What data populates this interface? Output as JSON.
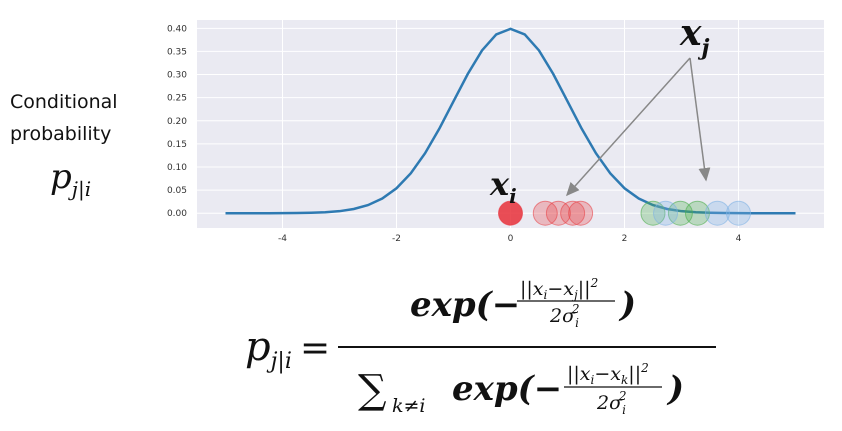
{
  "chart_data": {
    "type": "line",
    "x": [
      -5,
      -4.75,
      -4.5,
      -4.25,
      -4,
      -3.75,
      -3.5,
      -3.25,
      -3,
      -2.75,
      -2.5,
      -2.25,
      -2,
      -1.75,
      -1.5,
      -1.25,
      -1,
      -0.75,
      -0.5,
      -0.25,
      0,
      0.25,
      0.5,
      0.75,
      1,
      1.25,
      1.5,
      1.75,
      2,
      2.25,
      2.5,
      2.75,
      3,
      3.25,
      3.5,
      3.75,
      4,
      4.25,
      4.5,
      4.75,
      5
    ],
    "series": [
      {
        "color": "#2e7ab2",
        "values": [
          0,
          0,
          0,
          0,
          0.0001,
          0.0004,
          0.0009,
          0.002,
          0.0044,
          0.0091,
          0.0175,
          0.0317,
          0.054,
          0.0863,
          0.1295,
          0.1826,
          0.242,
          0.3011,
          0.3521,
          0.3867,
          0.3989,
          0.3867,
          0.3521,
          0.3011,
          0.242,
          0.1826,
          0.1295,
          0.0863,
          0.054,
          0.0317,
          0.0175,
          0.0091,
          0.0044,
          0.002,
          0.0009,
          0.0004,
          0.0001,
          0,
          0,
          0,
          0
        ]
      }
    ],
    "points": [
      {
        "color": "#e8303a",
        "opacity": 0.85,
        "x": [
          0
        ],
        "y": [
          0
        ]
      },
      {
        "color": "#e8454a",
        "opacity": 0.3,
        "x": [
          0.61,
          0.84,
          1.09,
          1.23
        ],
        "y": [
          0,
          0,
          0,
          0
        ]
      },
      {
        "color": "#4cae4c",
        "opacity": 0.3,
        "x": [
          2.5,
          2.98,
          3.28
        ],
        "y": [
          0,
          0,
          0
        ]
      },
      {
        "color": "#7fb2e5",
        "opacity": 0.3,
        "x": [
          2.72,
          3.63,
          4.0
        ],
        "y": [
          0,
          0,
          0
        ]
      }
    ],
    "xlim": [
      -5.5,
      5.5
    ],
    "ylim": [
      -0.032,
      0.418
    ],
    "xticks": [
      -4,
      -2,
      0,
      2,
      4
    ],
    "yticks": [
      {
        "value": 0,
        "label": "0.00"
      },
      {
        "value": 0.05,
        "label": "0.05"
      },
      {
        "value": 0.1,
        "label": "0.10"
      },
      {
        "value": 0.15,
        "label": "0.15"
      },
      {
        "value": 0.2,
        "label": "0.20"
      },
      {
        "value": 0.25,
        "label": "0.25"
      },
      {
        "value": 0.3,
        "label": "0.30"
      },
      {
        "value": 0.35,
        "label": "0.35"
      },
      {
        "value": 0.4,
        "label": "0.40"
      }
    ],
    "grid": true,
    "ylabel": {
      "line1": "Conditional",
      "line2": "probability",
      "sym": "p",
      "sym_sub": "j|i"
    },
    "annotations": {
      "xj": "x",
      "xj_sub": "j",
      "xi": "x",
      "xi_sub": "i"
    }
  },
  "formula": {
    "lhs": "p",
    "lhs_sub": "j|i",
    "equals": "=",
    "num": {
      "open": "exp(−",
      "frac_num": [
        "||x",
        "i",
        "−x",
        "j",
        "||",
        "2"
      ],
      "frac_den": [
        "2σ",
        "i",
        "2"
      ],
      "close": ")"
    },
    "den": {
      "sum": "∑",
      "sum_sub": "k≠i",
      "open": "exp(−",
      "frac_num": [
        "||x",
        "i",
        "−x",
        "k",
        "||",
        "2"
      ],
      "frac_den": [
        "2σ",
        "i",
        "2"
      ],
      "close": ")"
    }
  }
}
